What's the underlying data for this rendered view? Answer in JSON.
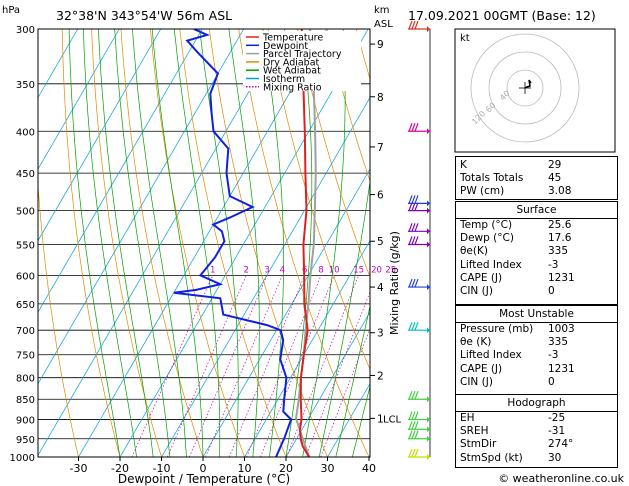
{
  "header": {
    "station": "32°38'N  343°54'W  56m  ASL",
    "datetime": "17.09.2021  00GMT  (Base: 12)",
    "hpa_label": "hPa",
    "km_label": "km",
    "asl_label": "ASL"
  },
  "chart_data": {
    "type": "line",
    "title": "Skew-T log-P diagram",
    "xlabel": "Dewpoint / Temperature (°C)",
    "ylabel_right": "Mixing Ratio (g/kg)",
    "x_ticks": [
      "-30",
      "-20",
      "-10",
      "0",
      "10",
      "20",
      "30",
      "40"
    ],
    "x_tick_values": [
      -30,
      -20,
      -10,
      0,
      10,
      20,
      30,
      40
    ],
    "pressure_levels": [
      300,
      350,
      400,
      450,
      500,
      550,
      600,
      650,
      700,
      750,
      800,
      850,
      900,
      950,
      1000
    ],
    "km_ticks": [
      {
        "label": "9",
        "p": 313
      },
      {
        "label": "8",
        "p": 363
      },
      {
        "label": "7",
        "p": 418
      },
      {
        "label": "6",
        "p": 478
      },
      {
        "label": "5",
        "p": 545
      },
      {
        "label": "4",
        "p": 620
      },
      {
        "label": "3",
        "p": 705
      },
      {
        "label": "2",
        "p": 795
      },
      {
        "label": "1",
        "p": 897
      }
    ],
    "lcl_label": "LCL",
    "lcl_p": 897,
    "mixing_ratio_labels": [
      "1",
      "2",
      "3",
      "4",
      "6",
      "8",
      "10",
      "15",
      "20",
      "25"
    ],
    "legend": [
      {
        "name": "Temperature",
        "color": "#e02020"
      },
      {
        "name": "Dewpoint",
        "color": "#1020e0"
      },
      {
        "name": "Parcel Trajectory",
        "color": "#a0a0a0"
      },
      {
        "name": "Dry Adiabat",
        "color": "#e08a00"
      },
      {
        "name": "Wet Adiabat",
        "color": "#00a000"
      },
      {
        "name": "Isotherm",
        "color": "#00a0e0"
      },
      {
        "name": "Mixing Ratio",
        "color": "#c000c0"
      }
    ],
    "series": [
      {
        "name": "Temperature",
        "points": [
          [
            1000,
            25.6
          ],
          [
            970,
            22.5
          ],
          [
            950,
            21
          ],
          [
            925,
            19.5
          ],
          [
            900,
            18.5
          ],
          [
            850,
            15.5
          ],
          [
            800,
            12.5
          ],
          [
            750,
            10
          ],
          [
            700,
            7.5
          ],
          [
            650,
            3
          ],
          [
            600,
            -1
          ],
          [
            550,
            -5.5
          ],
          [
            500,
            -9.5
          ],
          [
            450,
            -15
          ],
          [
            400,
            -21
          ],
          [
            350,
            -28
          ],
          [
            300,
            -36
          ]
        ]
      },
      {
        "name": "Dewpoint",
        "points": [
          [
            1000,
            17.6
          ],
          [
            950,
            17
          ],
          [
            900,
            16
          ],
          [
            880,
            13
          ],
          [
            850,
            11.5
          ],
          [
            800,
            9
          ],
          [
            760,
            5
          ],
          [
            720,
            3
          ],
          [
            700,
            1
          ],
          [
            690,
            -3
          ],
          [
            670,
            -15
          ],
          [
            640,
            -18
          ],
          [
            630,
            -30
          ],
          [
            625,
            -25
          ],
          [
            615,
            -20
          ],
          [
            600,
            -26
          ],
          [
            570,
            -25
          ],
          [
            545,
            -25
          ],
          [
            530,
            -27
          ],
          [
            520,
            -30
          ],
          [
            510,
            -27
          ],
          [
            495,
            -23
          ],
          [
            480,
            -30
          ],
          [
            450,
            -34
          ],
          [
            420,
            -37
          ],
          [
            400,
            -43
          ],
          [
            380,
            -46
          ],
          [
            360,
            -49
          ],
          [
            340,
            -50
          ],
          [
            320,
            -58
          ],
          [
            310,
            -62
          ],
          [
            305,
            -58
          ],
          [
            300,
            -62
          ]
        ]
      },
      {
        "name": "Parcel Trajectory",
        "points": [
          [
            1000,
            25.6
          ],
          [
            950,
            21.5
          ],
          [
            897,
            17
          ],
          [
            850,
            15
          ],
          [
            800,
            12.5
          ],
          [
            750,
            10
          ],
          [
            700,
            7
          ],
          [
            650,
            4
          ],
          [
            600,
            0.5
          ],
          [
            550,
            -3
          ],
          [
            500,
            -7.5
          ],
          [
            450,
            -12.5
          ],
          [
            400,
            -18.5
          ],
          [
            350,
            -25.5
          ],
          [
            300,
            -34
          ]
        ]
      }
    ],
    "wind_barbs": [
      {
        "p": 1000,
        "color": "#c0e000"
      },
      {
        "p": 950,
        "color": "#40d040"
      },
      {
        "p": 925,
        "color": "#40d040"
      },
      {
        "p": 900,
        "color": "#40d040"
      },
      {
        "p": 850,
        "color": "#40d040"
      },
      {
        "p": 700,
        "color": "#00c0c0"
      },
      {
        "p": 620,
        "color": "#2040e0"
      },
      {
        "p": 550,
        "color": "#8000c0"
      },
      {
        "p": 530,
        "color": "#8000c0"
      },
      {
        "p": 500,
        "color": "#8000c0"
      },
      {
        "p": 490,
        "color": "#2040e0"
      },
      {
        "p": 400,
        "color": "#e000a0"
      },
      {
        "p": 300,
        "color": "#e03020"
      }
    ]
  },
  "hodograph": {
    "unit_label": "kt",
    "ring_labels": [
      "40",
      "60",
      "120"
    ]
  },
  "indices": {
    "top": [
      {
        "k": "K",
        "v": "29"
      },
      {
        "k": "Totals Totals",
        "v": "45"
      },
      {
        "k": "PW (cm)",
        "v": "3.08"
      }
    ],
    "surface_title": "Surface",
    "surface": [
      {
        "k": "Temp (°C)",
        "v": "25.6"
      },
      {
        "k": "Dewp (°C)",
        "v": "17.6"
      },
      {
        "k": "θe(K)",
        "v": "335"
      },
      {
        "k": "Lifted Index",
        "v": "-3"
      },
      {
        "k": "CAPE (J)",
        "v": "1231"
      },
      {
        "k": "CIN (J)",
        "v": "0"
      }
    ],
    "unstable_title": "Most Unstable",
    "unstable": [
      {
        "k": "Pressure (mb)",
        "v": "1003"
      },
      {
        "k": "θe (K)",
        "v": "335"
      },
      {
        "k": "Lifted Index",
        "v": "-3"
      },
      {
        "k": "CAPE (J)",
        "v": "1231"
      },
      {
        "k": "CIN (J)",
        "v": "0"
      }
    ],
    "hodo_title": "Hodograph",
    "hodo": [
      {
        "k": "EH",
        "v": "-25"
      },
      {
        "k": "SREH",
        "v": "-31"
      },
      {
        "k": "StmDir",
        "v": "274°"
      },
      {
        "k": "StmSpd (kt)",
        "v": "30"
      }
    ]
  },
  "footer": {
    "credit": "© weatheronline.co.uk"
  }
}
